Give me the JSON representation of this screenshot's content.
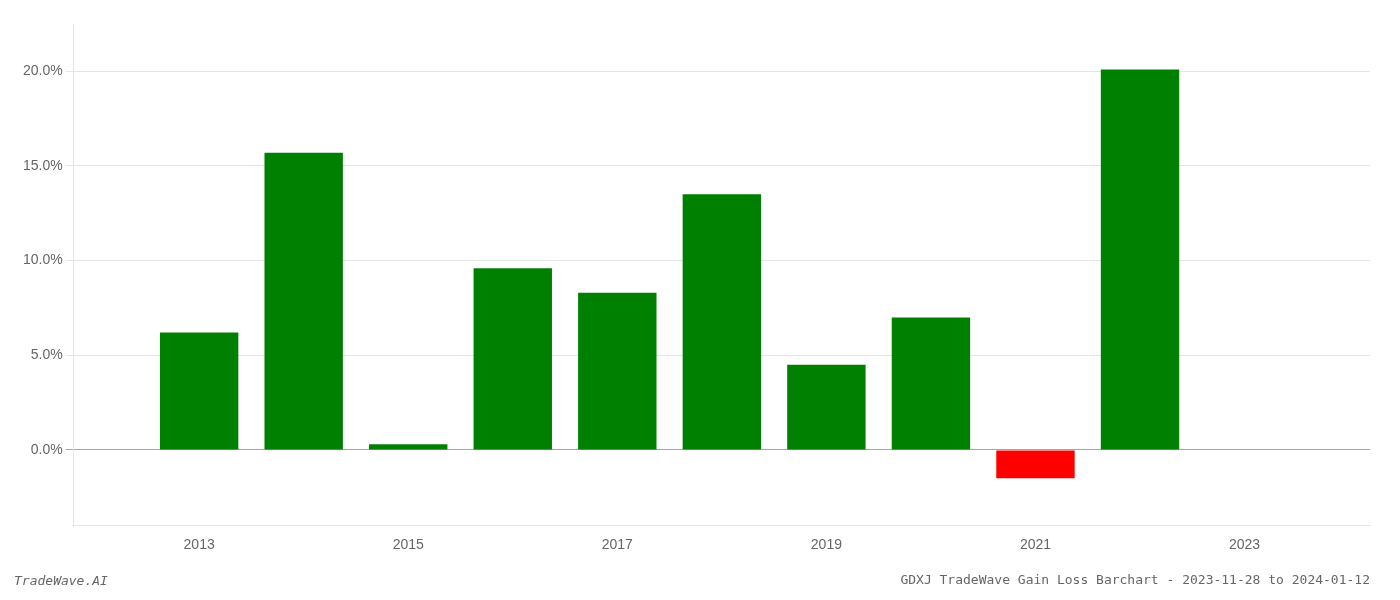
{
  "chart_data": {
    "type": "bar",
    "title": "GDXJ TradeWave Gain Loss Barchart - 2023-11-28 to 2024-01-12",
    "annotations": [
      "TradeWave.AI"
    ],
    "x": [
      2013,
      2014,
      2015,
      2016,
      2017,
      2018,
      2019,
      2020,
      2021,
      2022
    ],
    "values": [
      0.062,
      0.157,
      0.003,
      0.096,
      0.083,
      0.135,
      0.045,
      0.07,
      -0.015,
      0.201
    ],
    "colors": [
      "#008000",
      "#008000",
      "#008000",
      "#008000",
      "#008000",
      "#008000",
      "#008000",
      "#008000",
      "#ff0000",
      "#008000"
    ],
    "xlim": [
      2011.8,
      2024.2
    ],
    "xticks": [
      2013,
      2015,
      2017,
      2019,
      2021,
      2023
    ],
    "ylim": [
      -0.04,
      0.225
    ],
    "yticks": [
      {
        "value": 0.0,
        "label": "0.0%"
      },
      {
        "value": 0.05,
        "label": "5.0%"
      },
      {
        "value": 0.1,
        "label": "10.0%"
      },
      {
        "value": 0.15,
        "label": "15.0%"
      },
      {
        "value": 0.2,
        "label": "20.0%"
      }
    ],
    "grid": true
  }
}
